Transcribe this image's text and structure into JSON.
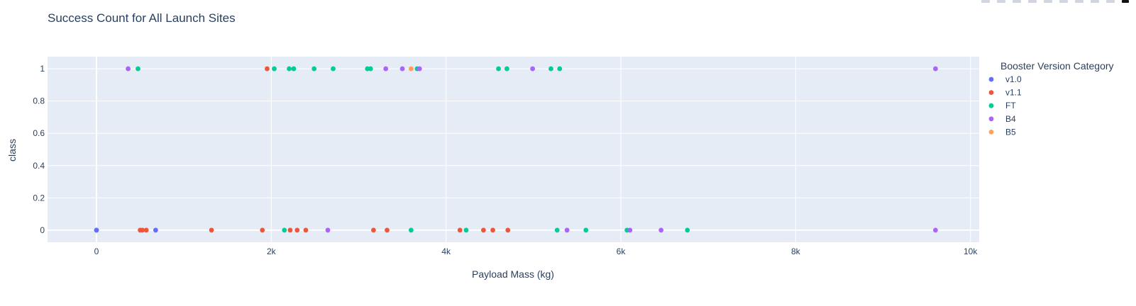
{
  "toolbar": {
    "icons": [
      "camera-icon",
      "zoom-icon",
      "pan-icon",
      "box-select-icon",
      "lasso-icon",
      "zoom-in-icon",
      "zoom-out-icon",
      "autoscale-icon",
      "reset-axes-icon",
      "plotly-logo-icon"
    ]
  },
  "chart_data": {
    "type": "scatter",
    "title": "Success Count for All Launch Sites",
    "xlabel": "Payload Mass (kg)",
    "ylabel": "class",
    "xlim": [
      -560,
      10100
    ],
    "ylim": [
      -0.075,
      1.075
    ],
    "x_ticks": [
      0,
      2000,
      4000,
      6000,
      8000,
      10000
    ],
    "x_tick_labels": [
      "0",
      "2k",
      "4k",
      "6k",
      "8k",
      "10k"
    ],
    "y_ticks": [
      0,
      0.2,
      0.4,
      0.6,
      0.8,
      1
    ],
    "y_tick_labels": [
      "0",
      "0.2",
      "0.4",
      "0.6",
      "0.8",
      "1"
    ],
    "grid": true,
    "legend_title": "Booster Version Category",
    "legend_position": "right",
    "series": [
      {
        "name": "v1.0",
        "color": "#636efa",
        "points": [
          [
            0,
            0
          ],
          [
            0,
            0
          ],
          [
            677,
            0
          ]
        ]
      },
      {
        "name": "v1.1",
        "color": "#ef553b",
        "points": [
          [
            500,
            0
          ],
          [
            525,
            0
          ],
          [
            570,
            0
          ],
          [
            1316,
            0
          ],
          [
            1898,
            0
          ],
          [
            1952,
            1
          ],
          [
            2216,
            0
          ],
          [
            2296,
            0
          ],
          [
            2395,
            0
          ],
          [
            3170,
            0
          ],
          [
            3325,
            0
          ],
          [
            4159,
            0
          ],
          [
            4428,
            0
          ],
          [
            4535,
            0
          ],
          [
            4707,
            0
          ]
        ]
      },
      {
        "name": "FT",
        "color": "#00cc96",
        "points": [
          [
            475,
            1
          ],
          [
            2034,
            1
          ],
          [
            2150,
            0
          ],
          [
            2205,
            1
          ],
          [
            2257,
            1
          ],
          [
            2490,
            1
          ],
          [
            2708,
            1
          ],
          [
            3100,
            1
          ],
          [
            3136,
            1
          ],
          [
            3600,
            0
          ],
          [
            3669,
            1
          ],
          [
            4230,
            0
          ],
          [
            4600,
            1
          ],
          [
            4696,
            1
          ],
          [
            5200,
            1
          ],
          [
            5271,
            0
          ],
          [
            5300,
            1
          ],
          [
            5600,
            0
          ],
          [
            6070,
            0
          ],
          [
            6761,
            0
          ]
        ]
      },
      {
        "name": "B4",
        "color": "#ab63fa",
        "points": [
          [
            362,
            1
          ],
          [
            2647,
            0
          ],
          [
            3310,
            1
          ],
          [
            3500,
            1
          ],
          [
            3696,
            1
          ],
          [
            4990,
            1
          ],
          [
            5384,
            0
          ],
          [
            6104,
            0
          ],
          [
            6460,
            0
          ],
          [
            9600,
            1
          ],
          [
            9600,
            0
          ]
        ]
      },
      {
        "name": "B5",
        "color": "#ffa15a",
        "points": [
          [
            3600,
            1
          ]
        ]
      }
    ]
  }
}
